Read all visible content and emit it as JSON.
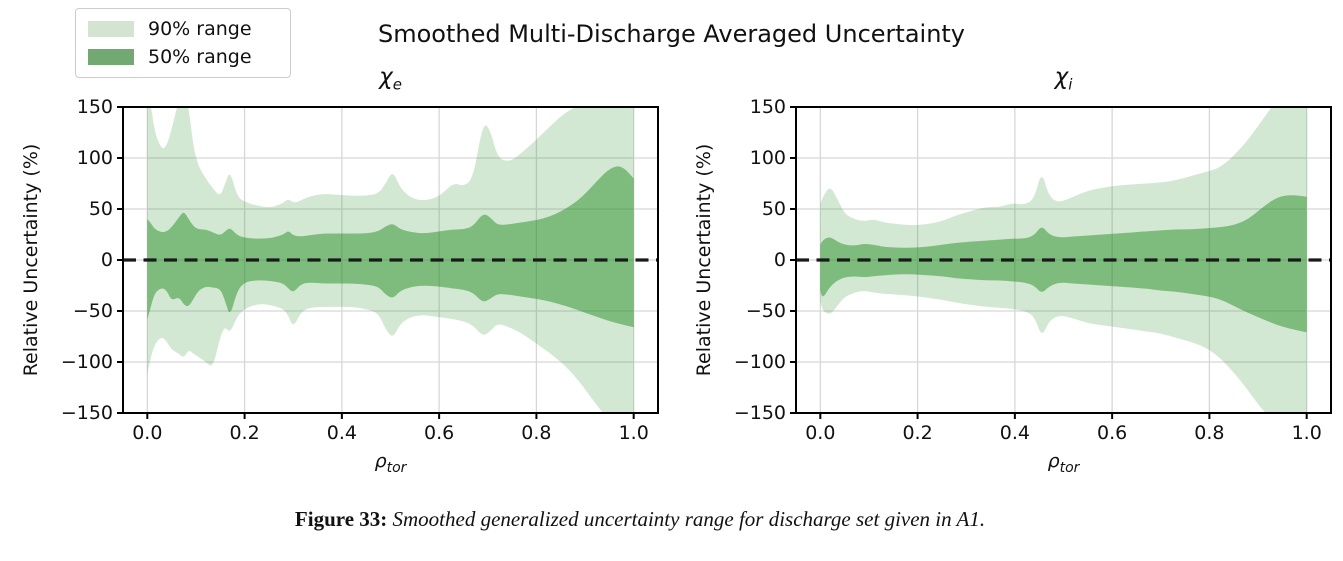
{
  "figure": {
    "title": "Smoothed Multi-Discharge Averaged Uncertainty",
    "caption_label": "Figure 33:",
    "caption_text": "Smoothed generalized uncertainty range for discharge set given in A1."
  },
  "legend": {
    "items": [
      {
        "label": "90% range",
        "color": "#d3e4d0"
      },
      {
        "label": "50% range",
        "color": "#72a872"
      }
    ]
  },
  "colors": {
    "band90_fill": "rgba(34,139,34,0.20)",
    "band50_fill": "rgba(34,139,34,0.48)",
    "grid": "#d7d7d7",
    "spine": "#000000",
    "zero_line": "#1a1a1a"
  },
  "chart_data": [
    {
      "type": "area",
      "id": "chi-e",
      "title": {
        "base": "χ",
        "sub": "e"
      },
      "xlabel": {
        "base": "ρ",
        "sub": "tor"
      },
      "ylabel": "Relative Uncertainty (%)",
      "xlim": [
        -0.05,
        1.05
      ],
      "ylim": [
        -150,
        150
      ],
      "xticks": [
        0.0,
        0.2,
        0.4,
        0.6,
        0.8,
        1.0
      ],
      "xtick_labels": [
        "0.0",
        "0.2",
        "0.4",
        "0.6",
        "0.8",
        "1.0"
      ],
      "yticks": [
        150,
        100,
        50,
        0,
        -50,
        -100,
        -150
      ],
      "ytick_labels": [
        "150",
        "100",
        "50",
        "0",
        "−50",
        "−100",
        "−150"
      ],
      "zero_line_y": 0,
      "series": [
        {
          "name": "90% range"
        },
        {
          "name": "50% range"
        }
      ],
      "x": [
        0.0,
        0.005,
        0.015,
        0.03,
        0.04,
        0.05,
        0.065,
        0.075,
        0.085,
        0.095,
        0.105,
        0.12,
        0.135,
        0.15,
        0.16,
        0.17,
        0.185,
        0.2,
        0.22,
        0.24,
        0.26,
        0.28,
        0.29,
        0.3,
        0.315,
        0.33,
        0.36,
        0.39,
        0.42,
        0.45,
        0.475,
        0.49,
        0.505,
        0.52,
        0.545,
        0.57,
        0.6,
        0.63,
        0.65,
        0.67,
        0.69,
        0.705,
        0.72,
        0.745,
        0.77,
        0.8,
        0.83,
        0.86,
        0.89,
        0.92,
        0.95,
        0.975,
        1.0
      ],
      "band90_upper": [
        160,
        160,
        125,
        108,
        112,
        128,
        158,
        162,
        150,
        110,
        92,
        80,
        70,
        62,
        75,
        88,
        62,
        57,
        54,
        52,
        52,
        56,
        60,
        56,
        58,
        62,
        65,
        64,
        63,
        63,
        65,
        75,
        88,
        70,
        60,
        58,
        62,
        76,
        72,
        80,
        135,
        128,
        100,
        96,
        105,
        118,
        132,
        145,
        152,
        148,
        158,
        162,
        162
      ],
      "band50_upper": [
        40,
        38,
        30,
        27,
        28,
        32,
        42,
        48,
        40,
        33,
        30,
        30,
        27,
        24,
        28,
        32,
        24,
        22,
        21,
        21,
        22,
        25,
        29,
        24,
        23,
        24,
        26,
        26,
        26,
        26,
        28,
        33,
        36,
        30,
        27,
        26,
        28,
        30,
        30,
        33,
        46,
        42,
        34,
        35,
        37,
        39,
        43,
        50,
        60,
        75,
        90,
        93,
        80
      ],
      "band50_lower": [
        -58,
        -50,
        -32,
        -27,
        -30,
        -40,
        -36,
        -44,
        -46,
        -38,
        -30,
        -26,
        -27,
        -28,
        -40,
        -56,
        -30,
        -22,
        -20,
        -20,
        -21,
        -23,
        -28,
        -32,
        -24,
        -22,
        -23,
        -23,
        -23,
        -24,
        -26,
        -34,
        -38,
        -30,
        -26,
        -25,
        -26,
        -28,
        -29,
        -32,
        -42,
        -38,
        -33,
        -34,
        -36,
        -38,
        -41,
        -45,
        -50,
        -55,
        -60,
        -63,
        -66
      ],
      "band90_lower": [
        -112,
        -100,
        -82,
        -75,
        -80,
        -88,
        -92,
        -96,
        -88,
        -92,
        -95,
        -100,
        -106,
        -75,
        -65,
        -72,
        -55,
        -48,
        -44,
        -43,
        -45,
        -48,
        -55,
        -66,
        -52,
        -47,
        -46,
        -46,
        -46,
        -48,
        -52,
        -68,
        -77,
        -62,
        -55,
        -54,
        -56,
        -58,
        -60,
        -64,
        -75,
        -70,
        -62,
        -66,
        -72,
        -82,
        -92,
        -104,
        -120,
        -140,
        -158,
        -162,
        -162
      ]
    },
    {
      "type": "area",
      "id": "chi-i",
      "title": {
        "base": "χ",
        "sub": "i"
      },
      "xlabel": {
        "base": "ρ",
        "sub": "tor"
      },
      "ylabel": "Relative Uncertainty (%)",
      "xlim": [
        -0.05,
        1.05
      ],
      "ylim": [
        -150,
        150
      ],
      "xticks": [
        0.0,
        0.2,
        0.4,
        0.6,
        0.8,
        1.0
      ],
      "xtick_labels": [
        "0.0",
        "0.2",
        "0.4",
        "0.6",
        "0.8",
        "1.0"
      ],
      "yticks": [
        150,
        100,
        50,
        0,
        -50,
        -100,
        -150
      ],
      "ytick_labels": [
        "150",
        "100",
        "50",
        "0",
        "−50",
        "−100",
        "−150"
      ],
      "zero_line_y": 0,
      "series": [
        {
          "name": "90% range"
        },
        {
          "name": "50% range"
        }
      ],
      "x": [
        0.0,
        0.005,
        0.02,
        0.035,
        0.05,
        0.07,
        0.09,
        0.11,
        0.13,
        0.16,
        0.19,
        0.22,
        0.25,
        0.28,
        0.31,
        0.34,
        0.37,
        0.395,
        0.42,
        0.44,
        0.455,
        0.47,
        0.49,
        0.52,
        0.55,
        0.58,
        0.61,
        0.64,
        0.67,
        0.7,
        0.73,
        0.76,
        0.79,
        0.82,
        0.85,
        0.88,
        0.91,
        0.94,
        0.97,
        1.0
      ],
      "band90_upper": [
        55,
        62,
        73,
        60,
        45,
        40,
        38,
        40,
        37,
        35,
        34,
        35,
        38,
        44,
        48,
        52,
        52,
        56,
        54,
        60,
        88,
        62,
        56,
        62,
        68,
        71,
        73,
        74,
        75,
        76,
        78,
        82,
        86,
        90,
        102,
        118,
        138,
        158,
        162,
        162
      ],
      "band50_upper": [
        15,
        20,
        23,
        18,
        15,
        14,
        16,
        15,
        13,
        12,
        12,
        13,
        15,
        17,
        18,
        19,
        20,
        21,
        21,
        24,
        34,
        25,
        22,
        23,
        24,
        25,
        26,
        27,
        28,
        29,
        30,
        30,
        31,
        32,
        34,
        40,
        52,
        62,
        64,
        62
      ],
      "band50_lower": [
        -30,
        -38,
        -26,
        -20,
        -17,
        -16,
        -17,
        -16,
        -15,
        -14,
        -14,
        -15,
        -16,
        -18,
        -19,
        -20,
        -20,
        -21,
        -22,
        -25,
        -33,
        -26,
        -22,
        -23,
        -24,
        -25,
        -26,
        -27,
        -28,
        -30,
        -31,
        -33,
        -35,
        -38,
        -45,
        -52,
        -58,
        -64,
        -68,
        -71
      ],
      "band90_lower": [
        -40,
        -50,
        -54,
        -45,
        -36,
        -32,
        -30,
        -32,
        -33,
        -34,
        -35,
        -37,
        -39,
        -42,
        -44,
        -46,
        -47,
        -48,
        -50,
        -55,
        -76,
        -60,
        -54,
        -57,
        -62,
        -64,
        -66,
        -68,
        -70,
        -72,
        -76,
        -80,
        -85,
        -95,
        -110,
        -128,
        -148,
        -160,
        -162,
        -162
      ]
    }
  ]
}
